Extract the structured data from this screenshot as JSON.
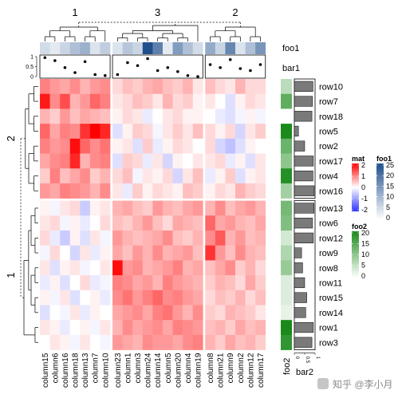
{
  "chart_data": {
    "type": "heatmap",
    "row_slices": [
      {
        "label": "2",
        "rows": [
          "row10",
          "row7",
          "row18",
          "row5",
          "row2",
          "row17",
          "row4",
          "row16"
        ]
      },
      {
        "label": "1",
        "rows": [
          "row13",
          "row6",
          "row12",
          "row9",
          "row8",
          "row11",
          "row15",
          "row14",
          "row1",
          "row3"
        ]
      }
    ],
    "column_slices": [
      {
        "label": "1",
        "columns": [
          "column15",
          "column6",
          "column16",
          "column18",
          "column13",
          "column7",
          "column10"
        ]
      },
      {
        "label": "3",
        "columns": [
          "column23",
          "column1",
          "column3",
          "column24",
          "column14",
          "column5",
          "column20",
          "column4",
          "column19"
        ]
      },
      {
        "label": "2",
        "columns": [
          "column8",
          "column21",
          "column9",
          "column2",
          "column12",
          "column17"
        ]
      }
    ],
    "matrix": [
      [
        1.0,
        0.8,
        0.7,
        0.9,
        0.6,
        0.8,
        0.9,
        0.3,
        0.5,
        0.4,
        0.6,
        0.7,
        0.5,
        0.4,
        0.6,
        0.2,
        0.5,
        0.3,
        0.2,
        0.6,
        0.3,
        0.3
      ],
      [
        1.8,
        0.9,
        1.4,
        0.6,
        0.8,
        1.2,
        1.0,
        0.2,
        0.3,
        0.5,
        0.4,
        0.2,
        0.6,
        0.3,
        0.4,
        0.1,
        0.2,
        0.0,
        -0.3,
        0.1,
        0.3,
        0.2
      ],
      [
        0.6,
        0.4,
        0.8,
        0.5,
        0.7,
        0.6,
        0.5,
        0.1,
        0.3,
        0.2,
        -0.2,
        0.0,
        0.2,
        0.3,
        0.1,
        0.1,
        0.0,
        -0.2,
        -0.3,
        -0.1,
        0.1,
        -0.1
      ],
      [
        1.2,
        0.7,
        1.0,
        0.9,
        1.6,
        2.0,
        1.7,
        -0.3,
        0.1,
        0.4,
        0.3,
        -0.1,
        0.2,
        0.4,
        0.2,
        0.5,
        0.3,
        0.1,
        0.3,
        -0.4,
        0.2,
        0.4
      ],
      [
        1.0,
        0.8,
        0.9,
        1.9,
        1.2,
        0.9,
        1.1,
        0.1,
        0.2,
        -0.3,
        0.4,
        -0.2,
        0.1,
        0.3,
        0.2,
        0.0,
        0.3,
        -0.4,
        -0.6,
        -0.3,
        0.1,
        0.0
      ],
      [
        0.7,
        0.9,
        1.0,
        1.7,
        0.6,
        0.9,
        1.0,
        -0.3,
        0.4,
        0.3,
        -0.2,
        0.2,
        -0.4,
        0.1,
        0.0,
        0.2,
        0.2,
        0.3,
        -0.2,
        0.1,
        -0.3,
        0.2
      ],
      [
        0.4,
        1.0,
        0.5,
        0.7,
        0.9,
        0.4,
        0.6,
        0.3,
        0.5,
        -0.1,
        0.2,
        0.1,
        0.3,
        -0.4,
        0.2,
        0.5,
        -0.2,
        0.1,
        0.4,
        -0.3,
        0.1,
        0.2
      ],
      [
        0.8,
        0.7,
        1.0,
        0.9,
        0.8,
        0.6,
        0.9,
        0.2,
        -0.2,
        0.4,
        0.1,
        0.3,
        0.2,
        0.1,
        0.5,
        0.4,
        0.1,
        0.3,
        0.2,
        0.6,
        0.4,
        0.3
      ],
      [
        0.1,
        -0.1,
        0.2,
        0.3,
        -0.5,
        0.1,
        0.2,
        0.6,
        0.7,
        0.5,
        0.4,
        0.8,
        0.6,
        0.5,
        0.7,
        0.8,
        0.6,
        0.9,
        0.5,
        0.7,
        0.8,
        0.6
      ],
      [
        0.2,
        0.3,
        -0.1,
        0.1,
        -0.2,
        0.0,
        0.3,
        0.5,
        0.4,
        0.6,
        0.8,
        0.5,
        0.3,
        0.7,
        0.6,
        0.5,
        1.2,
        0.7,
        0.8,
        0.6,
        0.5,
        0.7
      ],
      [
        0.3,
        -0.2,
        -0.5,
        0.1,
        -0.3,
        0.2,
        -0.1,
        0.8,
        0.6,
        0.5,
        0.6,
        0.7,
        0.9,
        0.5,
        0.4,
        0.6,
        0.9,
        1.3,
        0.6,
        0.8,
        0.5,
        0.6
      ],
      [
        -0.1,
        0.3,
        0.0,
        -0.4,
        0.2,
        -0.2,
        0.1,
        0.7,
        0.5,
        0.8,
        0.6,
        0.9,
        0.6,
        0.7,
        0.8,
        0.5,
        1.6,
        0.8,
        0.5,
        0.9,
        0.6,
        0.5
      ],
      [
        0.2,
        -0.3,
        0.1,
        0.2,
        -0.1,
        0.0,
        0.2,
        1.9,
        0.8,
        0.9,
        0.6,
        0.7,
        0.8,
        1.0,
        0.6,
        0.7,
        0.5,
        0.7,
        0.9,
        0.4,
        0.6,
        0.3
      ],
      [
        -0.2,
        0.1,
        -0.3,
        0.0,
        0.3,
        -0.2,
        -0.1,
        1.0,
        0.9,
        0.7,
        0.8,
        0.6,
        1.0,
        0.8,
        0.7,
        0.6,
        0.4,
        0.6,
        0.5,
        0.3,
        0.7,
        0.4
      ],
      [
        0.1,
        -0.1,
        0.2,
        -0.3,
        0.0,
        0.1,
        -0.2,
        0.9,
        1.1,
        0.8,
        1.0,
        1.2,
        0.9,
        1.0,
        0.8,
        0.7,
        0.3,
        0.5,
        0.4,
        0.6,
        0.3,
        0.5
      ],
      [
        -0.3,
        0.0,
        -0.1,
        0.2,
        -0.2,
        0.1,
        0.0,
        0.7,
        0.8,
        0.9,
        0.7,
        1.0,
        1.1,
        0.8,
        0.6,
        0.9,
        0.4,
        0.3,
        0.6,
        0.5,
        0.4,
        0.2
      ],
      [
        0.2,
        0.1,
        -0.2,
        0.0,
        0.1,
        -0.1,
        0.2,
        0.6,
        0.9,
        0.7,
        0.8,
        0.9,
        0.7,
        1.0,
        0.9,
        0.8,
        0.5,
        0.6,
        0.4,
        0.7,
        0.5,
        0.6
      ],
      [
        0.0,
        0.2,
        0.1,
        -0.1,
        0.2,
        0.0,
        -0.1,
        0.8,
        0.7,
        0.6,
        0.9,
        0.8,
        0.8,
        0.7,
        0.9,
        1.0,
        0.6,
        0.4,
        0.7,
        0.5,
        0.6,
        0.4
      ]
    ],
    "foo1": [
      5,
      3,
      6,
      9,
      11,
      4,
      7,
      4,
      8,
      6,
      25,
      18,
      3,
      14,
      9,
      5,
      12,
      6,
      17,
      4,
      9,
      15
    ],
    "bar1": [
      0.95,
      0.8,
      0.45,
      0.2,
      0.75,
      0.1,
      0.05,
      0.1,
      0.7,
      0.55,
      0.9,
      0.3,
      0.45,
      0.25,
      0.05,
      0.0,
      0.6,
      0.45,
      0.85,
      0.4,
      0.3,
      0.6
    ],
    "foo2": [
      6,
      14,
      0,
      20,
      13,
      10,
      19,
      8,
      12,
      11,
      4,
      7,
      9,
      3,
      3,
      2,
      20,
      18
    ],
    "bar2": [
      0.9,
      0.88,
      0.85,
      0.2,
      0.5,
      0.92,
      0.9,
      0.96,
      0.95,
      0.88,
      0.92,
      0.35,
      0.4,
      0.5,
      0.6,
      0.55,
      0.92,
      0.85
    ],
    "bar2_ticks": [
      "0",
      "0.5",
      "1"
    ],
    "bar1_ticks": [
      "1",
      "0.5",
      "0"
    ],
    "annotation_names": {
      "foo1": "foo1",
      "bar1": "bar1",
      "foo2": "foo2",
      "bar2": "bar2"
    },
    "legends": [
      {
        "title": "mat",
        "ticks": [
          "2",
          "1",
          "0",
          "-1",
          "-2"
        ],
        "colors": {
          "low": "#2c33ff",
          "mid": "#ffffff",
          "high": "#ff0000"
        },
        "range": [
          -2,
          2
        ]
      },
      {
        "title": "foo1",
        "ticks": [
          "25",
          "20",
          "15",
          "10",
          "5",
          "0"
        ],
        "colors": {
          "low": "#ffffff",
          "high": "#1f4e8c"
        },
        "range": [
          0,
          25
        ]
      },
      {
        "title": "foo2",
        "ticks": [
          "20",
          "15",
          "10",
          "5",
          "0"
        ],
        "colors": {
          "low": "#ffffff",
          "high": "#1a8a1a"
        },
        "range": [
          0,
          20
        ]
      }
    ]
  },
  "watermark": {
    "text": "知乎 @李小月",
    "logo": "知"
  }
}
